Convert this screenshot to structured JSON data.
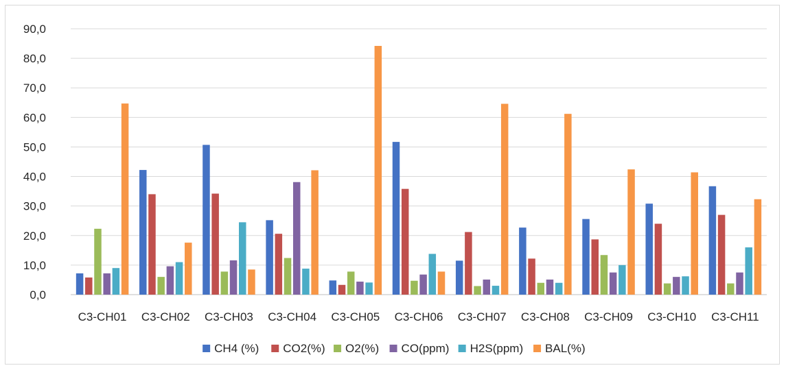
{
  "chart_data": {
    "type": "bar",
    "categories": [
      "C3-CH01",
      "C3-CH02",
      "C3-CH03",
      "C3-CH04",
      "C3-CH05",
      "C3-CH06",
      "C3-CH07",
      "C3-CH08",
      "C3-CH09",
      "C3-CH10",
      "C3-CH11"
    ],
    "series": [
      {
        "name": "CH4 (%)",
        "color": "#4472c4",
        "values": [
          7.2,
          42.2,
          50.7,
          25.2,
          4.8,
          51.7,
          11.5,
          22.7,
          25.6,
          30.8,
          36.7
        ]
      },
      {
        "name": "CO2(%)",
        "color": "#c0504d",
        "values": [
          5.8,
          34.0,
          34.2,
          20.6,
          3.3,
          35.8,
          21.2,
          12.2,
          18.7,
          24.0,
          27.0
        ]
      },
      {
        "name": "O2(%)",
        "color": "#9bbb59",
        "values": [
          22.3,
          6.0,
          7.8,
          12.4,
          7.8,
          4.7,
          2.9,
          4.0,
          13.4,
          3.8,
          3.8
        ]
      },
      {
        "name": "CO(ppm)",
        "color": "#8064a2",
        "values": [
          7.2,
          9.6,
          11.6,
          38.1,
          4.4,
          6.8,
          5.1,
          5.1,
          7.5,
          6.0,
          7.5
        ]
      },
      {
        "name": "H2S(ppm)",
        "color": "#4bacc6",
        "values": [
          9.0,
          11.0,
          24.5,
          8.8,
          4.1,
          13.8,
          3.0,
          4.0,
          10.0,
          6.2,
          16.0
        ]
      },
      {
        "name": "BAL(%)",
        "color": "#f79646",
        "values": [
          64.7,
          17.6,
          8.5,
          42.1,
          84.2,
          7.8,
          64.6,
          61.2,
          42.4,
          41.4,
          32.3
        ]
      }
    ],
    "yticks": [
      "0,0",
      "10,0",
      "20,0",
      "30,0",
      "40,0",
      "50,0",
      "60,0",
      "70,0",
      "80,0",
      "90,0"
    ],
    "ylim": [
      0,
      90
    ],
    "grid": true,
    "legend_position": "bottom",
    "title": "",
    "xlabel": "",
    "ylabel": ""
  }
}
